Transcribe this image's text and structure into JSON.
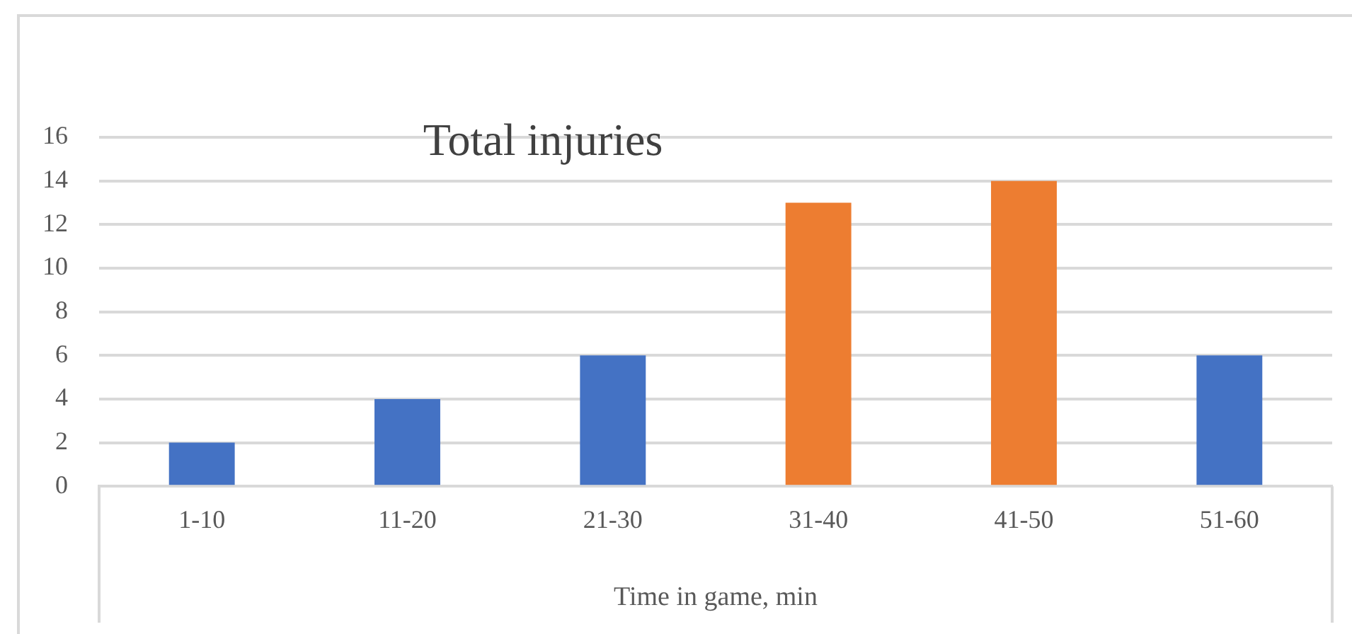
{
  "chart_data": {
    "type": "bar",
    "title": "Total injuries",
    "xlabel": "Time in game, min",
    "categories": [
      "1-10",
      "11-20",
      "21-30",
      "31-40",
      "41-50",
      "51-60"
    ],
    "values": [
      2,
      4,
      6,
      13,
      14,
      6
    ],
    "colors": [
      "#4472c4",
      "#4472c4",
      "#4472c4",
      "#ed7d31",
      "#ed7d31",
      "#4472c4"
    ],
    "ylim": [
      0,
      16
    ],
    "yticks": [
      0,
      2,
      4,
      6,
      8,
      10,
      12,
      14,
      16
    ],
    "grid": "y",
    "legend": false
  }
}
